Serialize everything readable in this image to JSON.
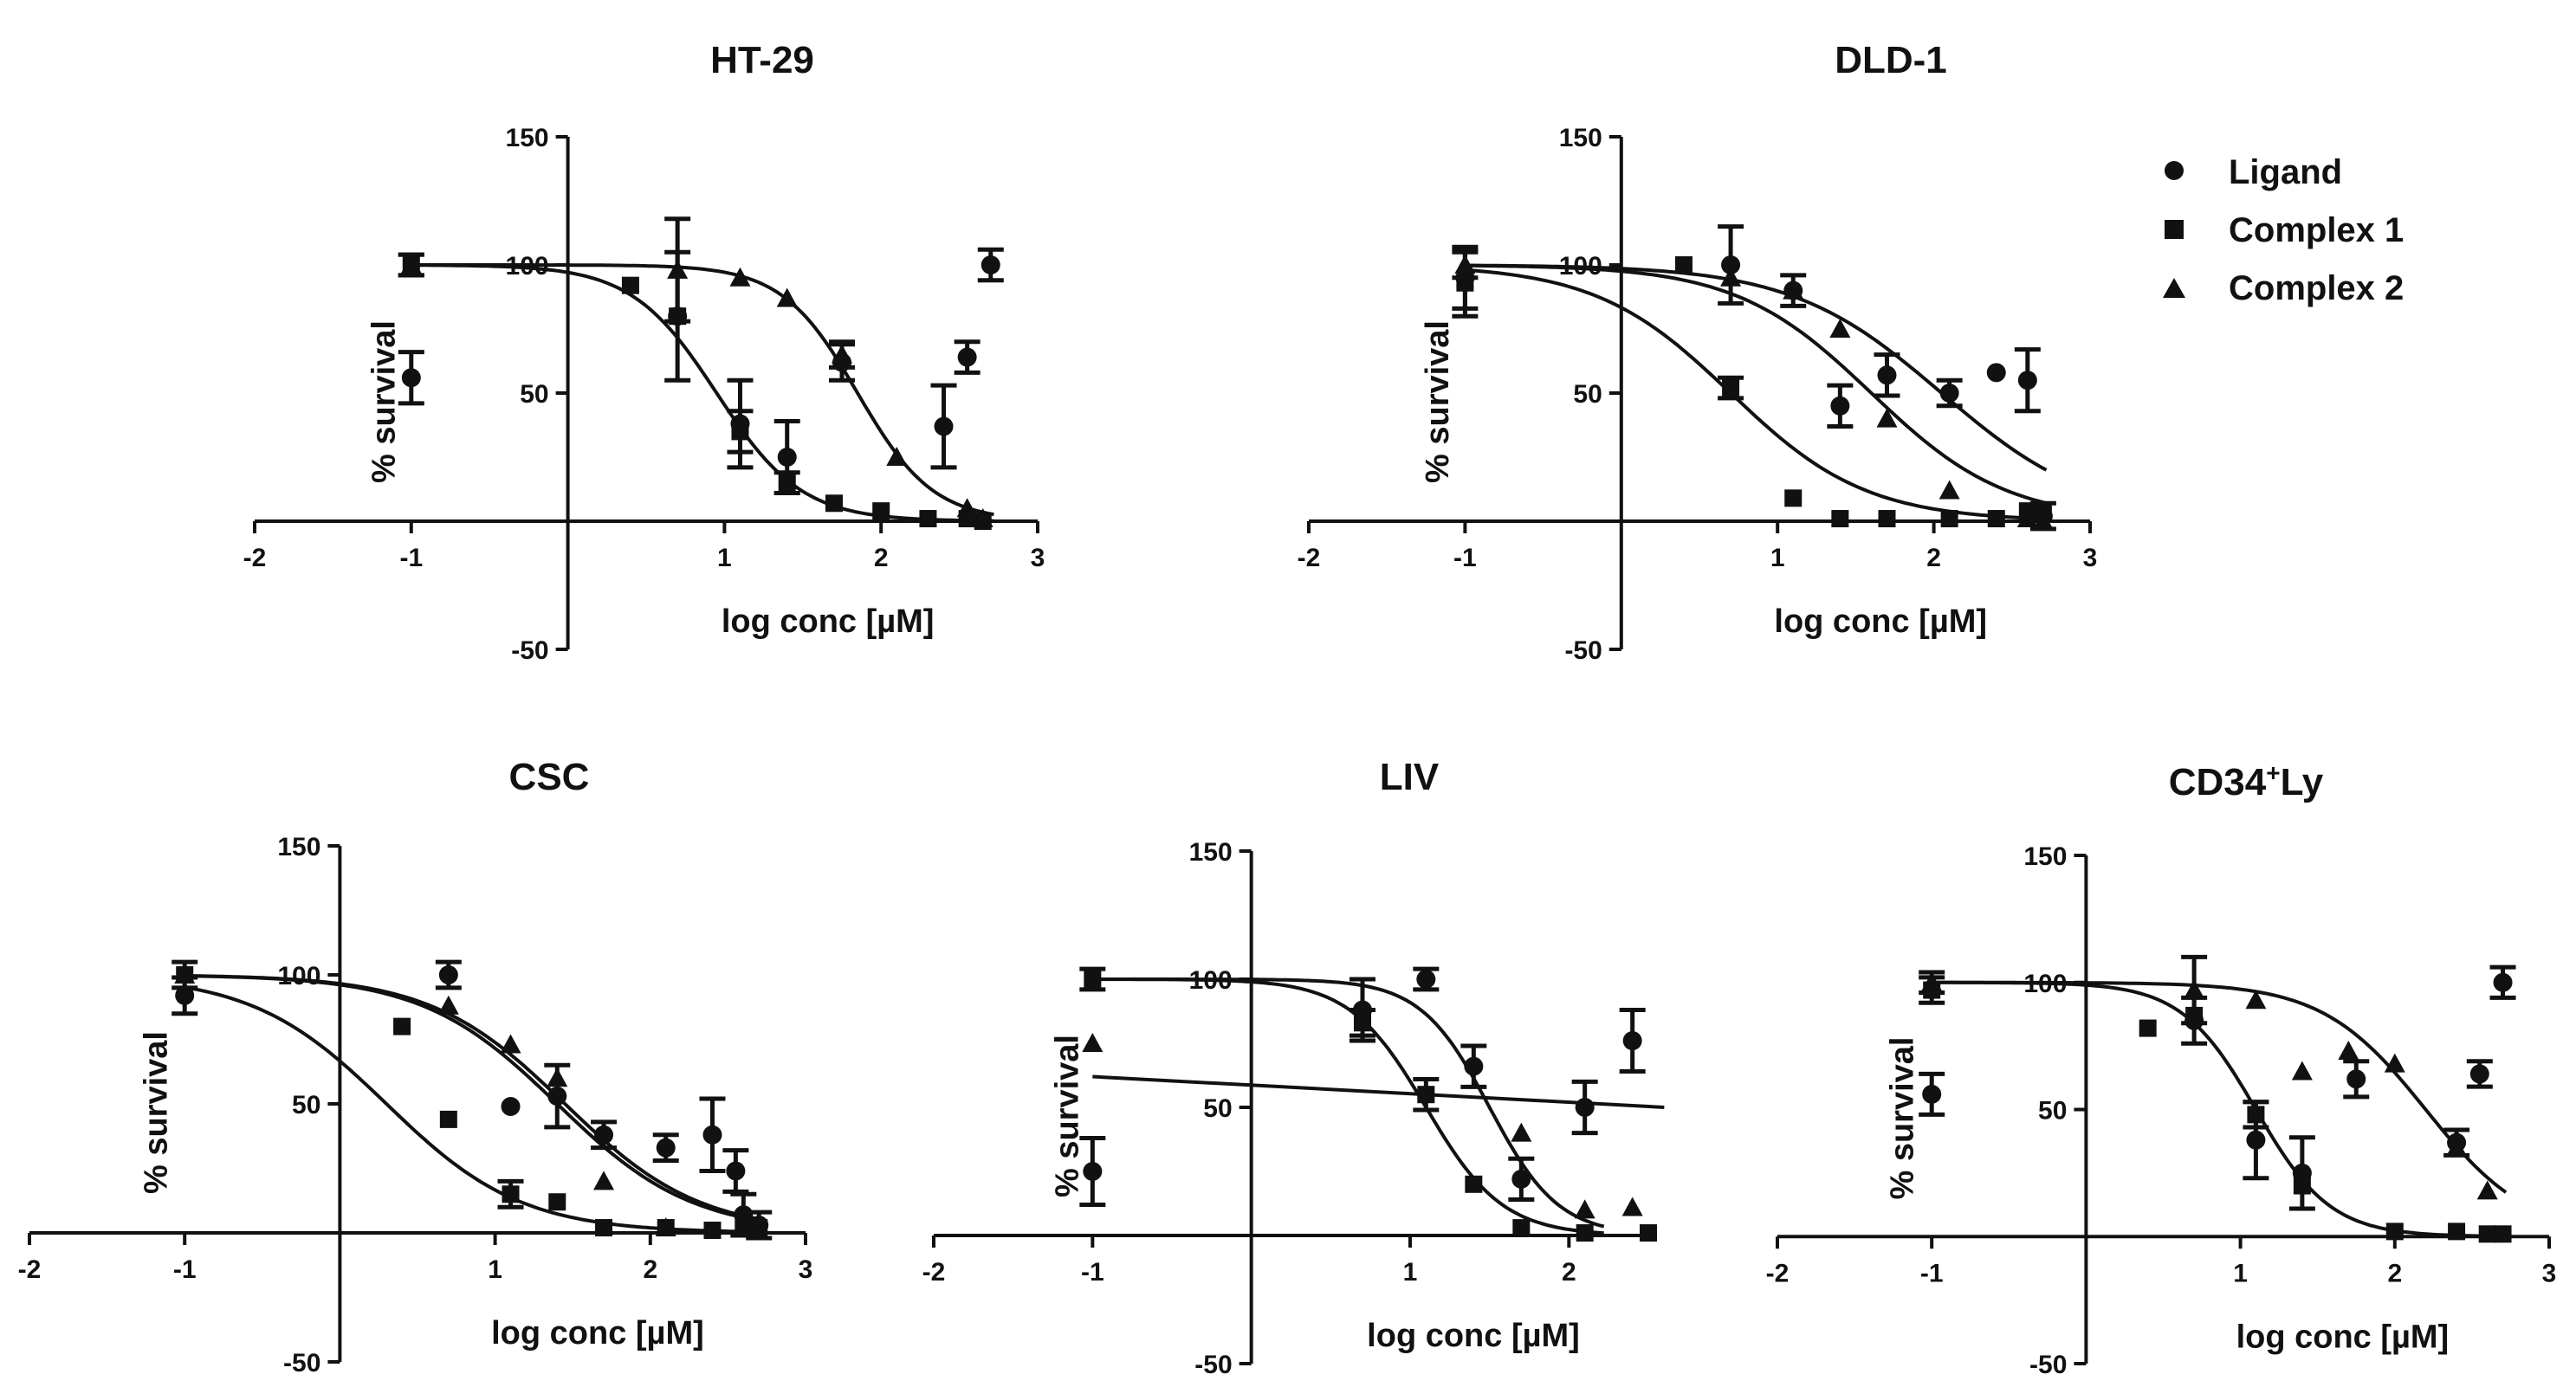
{
  "legend": {
    "placement": "top-right",
    "items": [
      {
        "name": "Ligand",
        "marker": "circle"
      },
      {
        "name": "Complex 1",
        "marker": "square"
      },
      {
        "name": "Complex 2",
        "marker": "triangle"
      }
    ]
  },
  "colors": {
    "ink": "#111111",
    "background": "#ffffff"
  },
  "chart_data": [
    {
      "type": "scatter",
      "title": "HT-29",
      "title_super": "",
      "title_rest": "",
      "xlabel": "log conc [µM]",
      "ylabel": "% survival",
      "xlim": [
        -2,
        3
      ],
      "ylim": [
        -50,
        150
      ],
      "xticks": [
        -2,
        -1,
        1,
        2,
        3
      ],
      "yticks": [
        -50,
        50,
        100,
        150
      ],
      "series": [
        {
          "name": "Ligand",
          "marker": "circle",
          "points": [
            [
              -1,
              56,
              10
            ],
            [
              0.7,
              80,
              25
            ],
            [
              1.1,
              38,
              17
            ],
            [
              1.4,
              25,
              14
            ],
            [
              1.75,
              62,
              7
            ],
            [
              2.4,
              37,
              16
            ],
            [
              2.55,
              64,
              6
            ],
            [
              2.7,
              100,
              6
            ]
          ],
          "curve": {
            "top": 100,
            "bottom": 0,
            "log_ic50": 1.85,
            "hill": 1.8
          }
        },
        {
          "name": "Complex 1",
          "marker": "square",
          "points": [
            [
              -1,
              100,
              4
            ],
            [
              0.4,
              92,
              0
            ],
            [
              0.7,
              80,
              0
            ],
            [
              1.1,
              35,
              8
            ],
            [
              1.4,
              15,
              4
            ],
            [
              1.7,
              7,
              0
            ],
            [
              2.0,
              4,
              0
            ],
            [
              2.3,
              1,
              0
            ],
            [
              2.55,
              1,
              0
            ],
            [
              2.65,
              0,
              0
            ]
          ],
          "curve": {
            "top": 100,
            "bottom": 0,
            "log_ic50": 0.95,
            "hill": 1.6
          }
        },
        {
          "name": "Complex 2",
          "marker": "triangle",
          "points": [
            [
              -1,
              100,
              4
            ],
            [
              0.7,
              98,
              20
            ],
            [
              1.1,
              95,
              0
            ],
            [
              1.4,
              87,
              0
            ],
            [
              1.75,
              65,
              5
            ],
            [
              2.1,
              25,
              0
            ],
            [
              2.55,
              5,
              0
            ],
            [
              2.65,
              1,
              0
            ]
          ],
          "curve": null
        }
      ]
    },
    {
      "type": "scatter",
      "title": "DLD-1",
      "title_super": "",
      "title_rest": "",
      "xlabel": "log conc [µM]",
      "ylabel": "% survival",
      "xlim": [
        -2,
        3
      ],
      "ylim": [
        -50,
        150
      ],
      "xticks": [
        -2,
        -1,
        1,
        2,
        3
      ],
      "yticks": [
        -50,
        50,
        100,
        150
      ],
      "series": [
        {
          "name": "Ligand",
          "marker": "circle",
          "points": [
            [
              -1,
              95,
              12
            ],
            [
              0.7,
              100,
              15
            ],
            [
              1.1,
              90,
              6
            ],
            [
              1.4,
              45,
              8
            ],
            [
              1.7,
              57,
              8
            ],
            [
              2.1,
              50,
              5
            ],
            [
              2.4,
              58,
              0
            ],
            [
              2.6,
              55,
              12
            ],
            [
              2.7,
              2,
              5
            ]
          ],
          "curve": {
            "top": 100,
            "bottom": 0,
            "log_ic50": 2.05,
            "hill": 0.9
          }
        },
        {
          "name": "Complex 1",
          "marker": "square",
          "points": [
            [
              -1,
              93,
              13
            ],
            [
              0.4,
              100,
              0
            ],
            [
              0.7,
              52,
              4
            ],
            [
              1.1,
              9,
              0
            ],
            [
              1.4,
              1,
              0
            ],
            [
              1.7,
              1,
              0
            ],
            [
              2.1,
              1,
              0
            ],
            [
              2.4,
              1,
              0
            ],
            [
              2.6,
              4,
              0
            ],
            [
              2.7,
              3,
              0
            ]
          ],
          "curve": {
            "top": 100,
            "bottom": 0,
            "log_ic50": 0.7,
            "hill": 1.0
          }
        },
        {
          "name": "Complex 2",
          "marker": "triangle",
          "points": [
            [
              -1,
              100,
              5
            ],
            [
              0.7,
              95,
              0
            ],
            [
              1.1,
              90,
              0
            ],
            [
              1.4,
              75,
              0
            ],
            [
              1.7,
              40,
              0
            ],
            [
              2.1,
              12,
              0
            ],
            [
              2.6,
              1,
              0
            ],
            [
              2.7,
              0,
              0
            ]
          ],
          "curve": {
            "top": 100,
            "bottom": 0,
            "log_ic50": 1.6,
            "hill": 1.0
          }
        }
      ]
    },
    {
      "type": "scatter",
      "title": "CSC",
      "title_super": "",
      "title_rest": "",
      "xlabel": "log conc [µM]",
      "ylabel": "% survival",
      "xlim": [
        -2,
        3
      ],
      "ylim": [
        -50,
        150
      ],
      "xticks": [
        -2,
        -1,
        1,
        2,
        3
      ],
      "yticks": [
        -50,
        50,
        100,
        150
      ],
      "series": [
        {
          "name": "Ligand",
          "marker": "circle",
          "points": [
            [
              -1,
              92,
              7
            ],
            [
              0.7,
              100,
              5
            ],
            [
              1.1,
              49,
              0
            ],
            [
              1.4,
              53,
              12
            ],
            [
              1.7,
              38,
              5
            ],
            [
              2.1,
              33,
              5
            ],
            [
              2.4,
              38,
              14
            ],
            [
              2.55,
              24,
              8
            ],
            [
              2.6,
              7,
              8
            ],
            [
              2.7,
              3,
              5
            ]
          ],
          "curve": {
            "top": 100,
            "bottom": 0,
            "log_ic50": 1.45,
            "hill": 1.0
          }
        },
        {
          "name": "Complex 1",
          "marker": "square",
          "points": [
            [
              -1,
              100,
              5
            ],
            [
              0.4,
              80,
              0
            ],
            [
              0.7,
              44,
              0
            ],
            [
              1.1,
              15,
              5
            ],
            [
              1.4,
              12,
              0
            ],
            [
              1.7,
              2,
              0
            ],
            [
              2.1,
              2,
              0
            ],
            [
              2.4,
              1,
              0
            ],
            [
              2.6,
              4,
              0
            ],
            [
              2.7,
              2,
              0
            ]
          ],
          "curve": {
            "top": 100,
            "bottom": 0,
            "log_ic50": 0.3,
            "hill": 1.0
          }
        },
        {
          "name": "Complex 2",
          "marker": "triangle",
          "points": [
            [
              -1,
              100,
              0
            ],
            [
              0.7,
              88,
              0
            ],
            [
              1.1,
              73,
              0
            ],
            [
              1.4,
              60,
              0
            ],
            [
              1.7,
              20,
              0
            ],
            [
              2.1,
              2,
              0
            ],
            [
              2.6,
              2,
              0
            ]
          ],
          "curve": {
            "top": 100,
            "bottom": 0,
            "log_ic50": 1.4,
            "hill": 1.0
          }
        }
      ]
    },
    {
      "type": "scatter",
      "title": "LIV",
      "title_super": "",
      "title_rest": "",
      "xlabel": "log conc [µM]",
      "ylabel": "% survival",
      "xlim": [
        -2,
        2.5
      ],
      "ylim": [
        -50,
        150
      ],
      "xticks": [
        -2,
        -1,
        1,
        2
      ],
      "yticks": [
        -50,
        50,
        100,
        150
      ],
      "series": [
        {
          "name": "Ligand",
          "marker": "circle",
          "points": [
            [
              -1,
              25,
              13
            ],
            [
              0.7,
              88,
              12
            ],
            [
              1.1,
              100,
              4
            ],
            [
              1.4,
              66,
              8
            ],
            [
              1.7,
              22,
              8
            ],
            [
              2.1,
              50,
              10
            ],
            [
              2.4,
              76,
              12
            ]
          ],
          "curve": {
            "top": 100,
            "bottom": 0,
            "log_ic50": 1.5,
            "hill": 2.0
          }
        },
        {
          "name": "Complex 1",
          "marker": "square",
          "points": [
            [
              -1,
              100,
              4
            ],
            [
              0.7,
              83,
              5
            ],
            [
              1.1,
              55,
              6
            ],
            [
              1.4,
              20,
              0
            ],
            [
              1.7,
              3,
              0
            ],
            [
              2.1,
              1,
              0
            ],
            [
              2.5,
              1,
              0
            ]
          ],
          "curve": {
            "top": 100,
            "bottom": 0,
            "log_ic50": 1.1,
            "hill": 1.8
          }
        },
        {
          "name": "Complex 2",
          "marker": "triangle",
          "points": [
            [
              -1,
              75,
              0
            ],
            [
              1.7,
              40,
              0
            ],
            [
              2.1,
              10,
              0
            ],
            [
              2.4,
              11,
              0
            ]
          ],
          "curve": {
            "line": [
              [
                -1,
                62
              ],
              [
                2.6,
                50
              ]
            ]
          }
        }
      ]
    },
    {
      "type": "scatter",
      "title": "CD34",
      "title_super": "+",
      "title_rest": "Ly",
      "xlabel": "log conc [µM]",
      "ylabel": "% survival",
      "xlim": [
        -2,
        3
      ],
      "ylim": [
        -50,
        150
      ],
      "xticks": [
        -2,
        -1,
        1,
        2,
        3
      ],
      "yticks": [
        -50,
        50,
        100,
        150
      ],
      "series": [
        {
          "name": "Ligand",
          "marker": "circle",
          "points": [
            [
              -1,
              56,
              8
            ],
            [
              0.7,
              85,
              9
            ],
            [
              1.1,
              38,
              15
            ],
            [
              1.4,
              25,
              14
            ],
            [
              1.75,
              62,
              7
            ],
            [
              2.4,
              37,
              5
            ],
            [
              2.55,
              64,
              5
            ],
            [
              2.7,
              100,
              6
            ]
          ],
          "curve": {
            "top": 100,
            "bottom": 0,
            "log_ic50": 1.1,
            "hill": 1.8
          }
        },
        {
          "name": "Complex 1",
          "marker": "square",
          "points": [
            [
              -1,
              97,
              5
            ],
            [
              0.4,
              82,
              0
            ],
            [
              0.7,
              87,
              0
            ],
            [
              1.1,
              48,
              5
            ],
            [
              1.4,
              20,
              0
            ],
            [
              2.0,
              2,
              0
            ],
            [
              2.4,
              2,
              0
            ],
            [
              2.6,
              1,
              0
            ],
            [
              2.7,
              1,
              0
            ]
          ],
          "curve": null
        },
        {
          "name": "Complex 2",
          "marker": "triangle",
          "points": [
            [
              -1,
              100,
              4
            ],
            [
              0.7,
              97,
              13
            ],
            [
              1.1,
              93,
              0
            ],
            [
              1.4,
              65,
              0
            ],
            [
              1.7,
              73,
              0
            ],
            [
              2.0,
              68,
              0
            ],
            [
              2.4,
              35,
              0
            ],
            [
              2.6,
              18,
              0
            ]
          ],
          "curve": {
            "top": 100,
            "bottom": 0,
            "log_ic50": 2.2,
            "hill": 1.3
          }
        }
      ]
    }
  ]
}
